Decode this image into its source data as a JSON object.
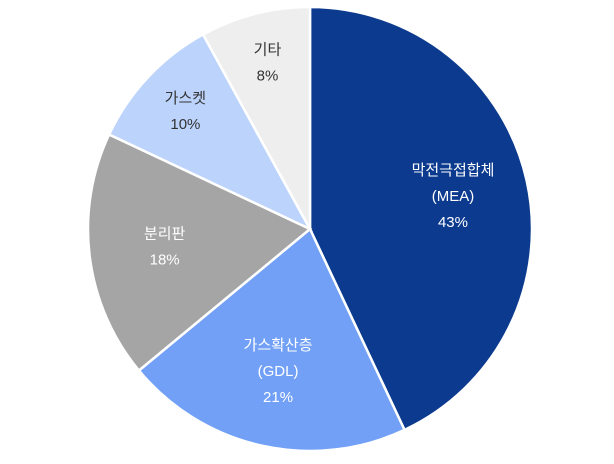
{
  "chart_data": {
    "type": "pie",
    "categories": [
      "막전극접합체",
      "가스확산층",
      "분리판",
      "가스켓",
      "기타"
    ],
    "category_notes": [
      "(MEA)",
      "(GDL)",
      null,
      null,
      null
    ],
    "values": [
      43,
      21,
      18,
      10,
      8
    ],
    "value_labels": [
      "43%",
      "21%",
      "18%",
      "10%",
      "8%"
    ],
    "colors": [
      "#0b3a8e",
      "#71a0f6",
      "#a5a5a5",
      "#bcd3fb",
      "#eeeeee"
    ]
  }
}
